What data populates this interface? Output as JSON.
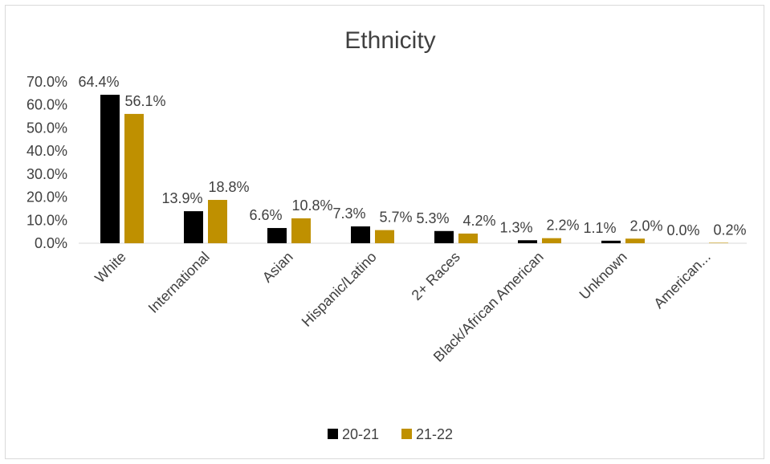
{
  "chart_data": {
    "type": "bar",
    "title": "Ethnicity",
    "xlabel": "",
    "ylabel": "",
    "ylim": [
      0,
      70
    ],
    "y_ticks": [
      "0.0%",
      "10.0%",
      "20.0%",
      "30.0%",
      "40.0%",
      "50.0%",
      "60.0%",
      "70.0%"
    ],
    "categories": [
      "White",
      "International",
      "Asian",
      "Hispanic/Latino",
      "2+ Races",
      "Black/African American",
      "Unknown",
      "American..."
    ],
    "series": [
      {
        "name": "20-21",
        "color": "#000000",
        "values": [
          64.4,
          13.9,
          6.6,
          7.3,
          5.3,
          1.3,
          1.1,
          0.0
        ],
        "labels": [
          "64.4%",
          "13.9%",
          "6.6%",
          "7.3%",
          "5.3%",
          "1.3%",
          "1.1%",
          "0.0%"
        ]
      },
      {
        "name": "21-22",
        "color": "#BF9000",
        "values": [
          56.1,
          18.8,
          10.8,
          5.7,
          4.2,
          2.2,
          2.0,
          0.2
        ],
        "labels": [
          "56.1%",
          "18.8%",
          "10.8%",
          "5.7%",
          "4.2%",
          "2.2%",
          "2.0%",
          "0.2%"
        ]
      }
    ],
    "grid": false,
    "legend_position": "bottom"
  }
}
